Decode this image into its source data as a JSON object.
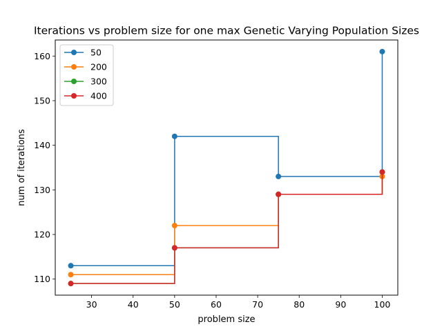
{
  "chart_data": {
    "type": "line",
    "drawstyle": "steps-post",
    "marker": "circle",
    "title": "Iterations vs problem size for one max Genetic Varying Population Sizes",
    "xlabel": "problem size",
    "ylabel": "num of iterations",
    "xlim": [
      21.25,
      103.75
    ],
    "ylim": [
      106.4,
      163.6
    ],
    "xticks": [
      30,
      40,
      50,
      60,
      70,
      80,
      90,
      100
    ],
    "yticks": [
      110,
      120,
      130,
      140,
      150,
      160
    ],
    "grid": false,
    "legend_position": "top-left",
    "x": [
      25,
      50,
      75,
      100
    ],
    "series": [
      {
        "name": "50",
        "color": "#1f77b4",
        "values": [
          113,
          142,
          133,
          161
        ]
      },
      {
        "name": "200",
        "color": "#ff7f0e",
        "values": [
          111,
          122,
          129,
          133
        ]
      },
      {
        "name": "300",
        "color": "#2ca02c",
        "values": [
          109,
          117,
          129,
          134
        ]
      },
      {
        "name": "400",
        "color": "#d62728",
        "values": [
          109,
          117,
          129,
          134
        ]
      }
    ]
  }
}
